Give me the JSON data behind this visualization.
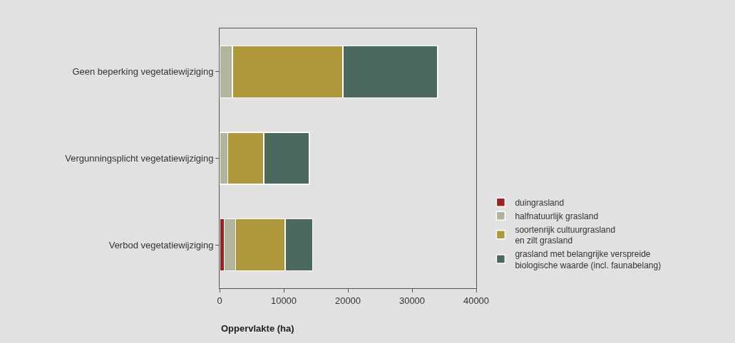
{
  "chart_data": {
    "type": "bar",
    "orientation": "horizontal",
    "stacked": true,
    "xlabel": "Oppervlakte (ha)",
    "categories": [
      "Geen beperking vegetatiewijziging",
      "Vergunningsplicht vegetatiewijziging",
      "Verbod vegetatiewijziging"
    ],
    "series": [
      {
        "name": "duingrasland",
        "color": "#9b2321",
        "values": [
          0,
          0,
          700
        ]
      },
      {
        "name": "halfnatuurlijk grasland",
        "color": "#b1b59c",
        "values": [
          2000,
          1300,
          1800
        ]
      },
      {
        "name": "soortenrijk cultuurgrasland\nen zilt grasland",
        "color": "#af983b",
        "values": [
          17200,
          5600,
          7700
        ]
      },
      {
        "name": "grasland met belangrijke verspreide\nbiologische waarde (incl. faunabelang)",
        "color": "#4c695d",
        "values": [
          14800,
          7100,
          4300
        ]
      }
    ],
    "xlim": [
      0,
      40000
    ],
    "xticks": [
      0,
      10000,
      20000,
      30000,
      40000
    ],
    "grid": false,
    "legend": "right"
  }
}
